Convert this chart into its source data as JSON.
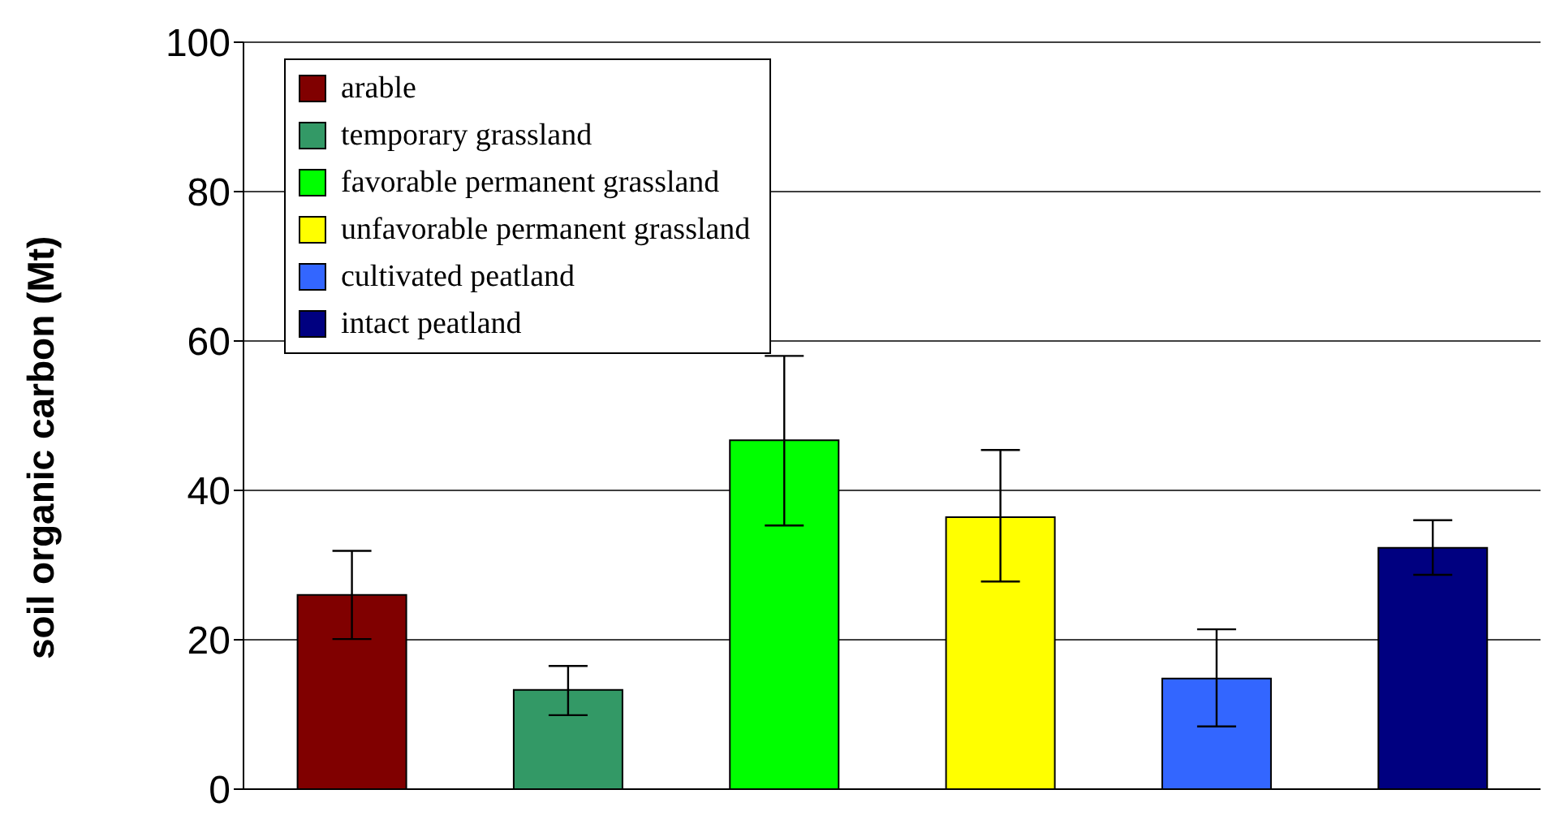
{
  "chart_data": {
    "type": "bar",
    "ylabel": "soil organic carbon (Mt)",
    "categories": [
      null,
      null,
      null,
      null,
      null,
      null
    ],
    "series": [
      {
        "name": "arable",
        "color": "#800000",
        "values": [
          26,
          null,
          null,
          null,
          null,
          null
        ],
        "errors": [
          [
            20.1,
            31.9
          ],
          null,
          null,
          null,
          null,
          null
        ]
      },
      {
        "name": "temporary grassland",
        "color": "#339966",
        "values": [
          null,
          13.3,
          null,
          null,
          null,
          null
        ],
        "errors": [
          null,
          [
            9.9,
            16.5
          ],
          null,
          null,
          null,
          null
        ]
      },
      {
        "name": "favorable permanent grassland",
        "color": "#00ff00",
        "values": [
          null,
          null,
          46.7,
          null,
          null,
          null
        ],
        "errors": [
          null,
          null,
          [
            35.3,
            58
          ],
          null,
          null,
          null
        ]
      },
      {
        "name": "unfavorable permanent grassland",
        "color": "#ffff00",
        "values": [
          null,
          null,
          null,
          36.4,
          null,
          null
        ],
        "errors": [
          null,
          null,
          null,
          [
            27.8,
            45.4
          ],
          null,
          null
        ]
      },
      {
        "name": "cultivated peatland",
        "color": "#3366ff",
        "values": [
          null,
          null,
          null,
          null,
          14.8,
          null
        ],
        "errors": [
          null,
          null,
          null,
          null,
          [
            8.4,
            21.4
          ],
          null
        ]
      },
      {
        "name": "intact peatland",
        "color": "#000080",
        "values": [
          null,
          null,
          null,
          null,
          null,
          32.3
        ],
        "errors": [
          null,
          null,
          null,
          null,
          null,
          [
            28.7,
            36
          ]
        ]
      }
    ],
    "ylim": [
      0,
      100
    ],
    "yticks": [
      0,
      20,
      40,
      60,
      80,
      100
    ],
    "grid": "y",
    "legend": "top left"
  }
}
